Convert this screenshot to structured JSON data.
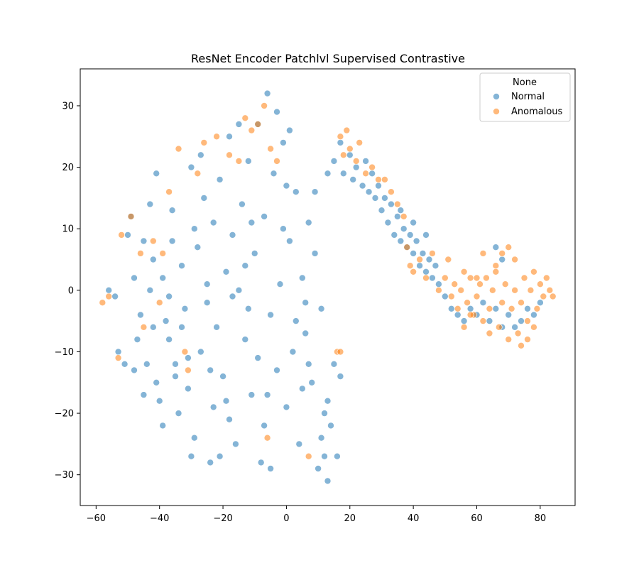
{
  "chart_data": {
    "type": "scatter",
    "title": "ResNet Encoder Patchlvl Supervised Contrastive",
    "xlabel": "",
    "ylabel": "",
    "xlim": [
      -65,
      91
    ],
    "ylim": [
      -35,
      36
    ],
    "xticks": [
      -60,
      -40,
      -20,
      0,
      20,
      40,
      60,
      80
    ],
    "yticks": [
      -30,
      -20,
      -10,
      0,
      10,
      20,
      30
    ],
    "grid": false,
    "legend": {
      "title": "None",
      "placement": "top-right",
      "entries": [
        "Normal",
        "Anomalous"
      ]
    },
    "series": [
      {
        "name": "Normal",
        "color": "#1f77b4",
        "points": [
          [
            -56,
            0
          ],
          [
            -54,
            -1
          ],
          [
            -53,
            -10
          ],
          [
            -51,
            -12
          ],
          [
            -50,
            9
          ],
          [
            -49,
            12
          ],
          [
            -48,
            2
          ],
          [
            -47,
            -8
          ],
          [
            -46,
            -4
          ],
          [
            -45,
            8
          ],
          [
            -44,
            -12
          ],
          [
            -43,
            0
          ],
          [
            -42,
            5
          ],
          [
            -41,
            -15
          ],
          [
            -40,
            -18
          ],
          [
            -39,
            2
          ],
          [
            -38,
            -5
          ],
          [
            -37,
            -8
          ],
          [
            -36,
            8
          ],
          [
            -35,
            -12
          ],
          [
            -34,
            -20
          ],
          [
            -33,
            4
          ],
          [
            -32,
            -3
          ],
          [
            -31,
            -16
          ],
          [
            -30,
            20
          ],
          [
            -29,
            -24
          ],
          [
            -28,
            7
          ],
          [
            -27,
            -10
          ],
          [
            -26,
            15
          ],
          [
            -25,
            -2
          ],
          [
            -24,
            -28
          ],
          [
            -23,
            11
          ],
          [
            -22,
            -6
          ],
          [
            -21,
            18
          ],
          [
            -20,
            -14
          ],
          [
            -19,
            3
          ],
          [
            -18,
            -21
          ],
          [
            -17,
            9
          ],
          [
            -16,
            -25
          ],
          [
            -15,
            0
          ],
          [
            -14,
            14
          ],
          [
            -13,
            -8
          ],
          [
            -12,
            21
          ],
          [
            -11,
            -17
          ],
          [
            -10,
            6
          ],
          [
            -9,
            27
          ],
          [
            -8,
            -28
          ],
          [
            -7,
            12
          ],
          [
            -6,
            32
          ],
          [
            -5,
            -4
          ],
          [
            -4,
            19
          ],
          [
            -3,
            -13
          ],
          [
            -2,
            1
          ],
          [
            -1,
            24
          ],
          [
            0,
            -19
          ],
          [
            1,
            8
          ],
          [
            2,
            -10
          ],
          [
            3,
            16
          ],
          [
            4,
            -25
          ],
          [
            5,
            2
          ],
          [
            6,
            -7
          ],
          [
            7,
            11
          ],
          [
            8,
            -15
          ],
          [
            9,
            6
          ],
          [
            10,
            -29
          ],
          [
            11,
            -3
          ],
          [
            12,
            -20
          ],
          [
            13,
            -31
          ],
          [
            14,
            -22
          ],
          [
            15,
            -12
          ],
          [
            16,
            -27
          ],
          [
            17,
            -14
          ],
          [
            -45,
            -17
          ],
          [
            -39,
            -22
          ],
          [
            -33,
            -6
          ],
          [
            -27,
            22
          ],
          [
            -21,
            -27
          ],
          [
            -15,
            27
          ],
          [
            -9,
            -11
          ],
          [
            -3,
            29
          ],
          [
            3,
            -5
          ],
          [
            9,
            16
          ],
          [
            -43,
            14
          ],
          [
            -37,
            -1
          ],
          [
            -31,
            -11
          ],
          [
            -25,
            1
          ],
          [
            -19,
            -18
          ],
          [
            -13,
            4
          ],
          [
            -7,
            -22
          ],
          [
            -1,
            10
          ],
          [
            5,
            -16
          ],
          [
            11,
            -24
          ],
          [
            -48,
            -13
          ],
          [
            -42,
            -6
          ],
          [
            -36,
            13
          ],
          [
            -30,
            -27
          ],
          [
            -24,
            -13
          ],
          [
            -18,
            25
          ],
          [
            -12,
            -3
          ],
          [
            -6,
            -17
          ],
          [
            0,
            17
          ],
          [
            6,
            -2
          ],
          [
            12,
            -27
          ],
          [
            -41,
            19
          ],
          [
            -35,
            -14
          ],
          [
            -29,
            10
          ],
          [
            -23,
            -19
          ],
          [
            -17,
            -1
          ],
          [
            -11,
            11
          ],
          [
            -5,
            -29
          ],
          [
            1,
            26
          ],
          [
            7,
            -12
          ],
          [
            13,
            -18
          ],
          [
            13,
            19
          ],
          [
            15,
            21
          ],
          [
            17,
            24
          ],
          [
            18,
            19
          ],
          [
            20,
            22
          ],
          [
            21,
            18
          ],
          [
            22,
            20
          ],
          [
            24,
            17
          ],
          [
            25,
            21
          ],
          [
            26,
            16
          ],
          [
            27,
            19
          ],
          [
            28,
            15
          ],
          [
            29,
            17
          ],
          [
            30,
            13
          ],
          [
            31,
            15
          ],
          [
            32,
            11
          ],
          [
            33,
            14
          ],
          [
            34,
            9
          ],
          [
            35,
            12
          ],
          [
            36,
            8
          ],
          [
            37,
            10
          ],
          [
            38,
            7
          ],
          [
            39,
            9
          ],
          [
            40,
            6
          ],
          [
            41,
            8
          ],
          [
            42,
            4
          ],
          [
            43,
            6
          ],
          [
            44,
            3
          ],
          [
            45,
            5
          ],
          [
            46,
            2
          ],
          [
            47,
            4
          ],
          [
            48,
            1
          ],
          [
            50,
            -1
          ],
          [
            52,
            -3
          ],
          [
            54,
            -4
          ],
          [
            56,
            -5
          ],
          [
            58,
            -3
          ],
          [
            60,
            -4
          ],
          [
            62,
            -2
          ],
          [
            64,
            -5
          ],
          [
            66,
            -3
          ],
          [
            68,
            -6
          ],
          [
            70,
            -4
          ],
          [
            72,
            -6
          ],
          [
            74,
            -5
          ],
          [
            76,
            -3
          ],
          [
            78,
            -4
          ],
          [
            80,
            -2
          ],
          [
            66,
            7
          ],
          [
            68,
            5
          ],
          [
            36,
            13
          ],
          [
            40,
            11
          ],
          [
            44,
            9
          ]
        ]
      },
      {
        "name": "Anomalous",
        "color": "#ff7f0e",
        "points": [
          [
            -58,
            -2
          ],
          [
            -56,
            -1
          ],
          [
            -53,
            -11
          ],
          [
            -52,
            9
          ],
          [
            -49,
            12
          ],
          [
            -46,
            6
          ],
          [
            -45,
            -6
          ],
          [
            -42,
            8
          ],
          [
            -40,
            -2
          ],
          [
            -39,
            6
          ],
          [
            -37,
            16
          ],
          [
            -34,
            23
          ],
          [
            -32,
            -10
          ],
          [
            -31,
            -13
          ],
          [
            -28,
            19
          ],
          [
            -26,
            24
          ],
          [
            -22,
            25
          ],
          [
            -18,
            22
          ],
          [
            -15,
            21
          ],
          [
            -13,
            28
          ],
          [
            -11,
            26
          ],
          [
            -9,
            27
          ],
          [
            -7,
            30
          ],
          [
            -6,
            -24
          ],
          [
            -5,
            23
          ],
          [
            -3,
            21
          ],
          [
            7,
            -27
          ],
          [
            16,
            -10
          ],
          [
            17,
            -10
          ],
          [
            17,
            25
          ],
          [
            18,
            22
          ],
          [
            19,
            26
          ],
          [
            20,
            23
          ],
          [
            22,
            21
          ],
          [
            23,
            24
          ],
          [
            25,
            19
          ],
          [
            27,
            20
          ],
          [
            29,
            18
          ],
          [
            31,
            18
          ],
          [
            33,
            16
          ],
          [
            35,
            14
          ],
          [
            37,
            12
          ],
          [
            38,
            7
          ],
          [
            39,
            4
          ],
          [
            40,
            3
          ],
          [
            42,
            5
          ],
          [
            44,
            2
          ],
          [
            46,
            6
          ],
          [
            48,
            0
          ],
          [
            50,
            2
          ],
          [
            51,
            5
          ],
          [
            52,
            -1
          ],
          [
            53,
            1
          ],
          [
            54,
            -3
          ],
          [
            55,
            0
          ],
          [
            56,
            3
          ],
          [
            57,
            -2
          ],
          [
            58,
            2
          ],
          [
            59,
            -4
          ],
          [
            60,
            -1
          ],
          [
            61,
            1
          ],
          [
            62,
            -5
          ],
          [
            63,
            2
          ],
          [
            64,
            -3
          ],
          [
            65,
            0
          ],
          [
            66,
            3
          ],
          [
            67,
            -6
          ],
          [
            68,
            -2
          ],
          [
            69,
            1
          ],
          [
            70,
            -8
          ],
          [
            71,
            -3
          ],
          [
            72,
            0
          ],
          [
            73,
            -7
          ],
          [
            74,
            -2
          ],
          [
            75,
            2
          ],
          [
            76,
            -5
          ],
          [
            77,
            0
          ],
          [
            78,
            3
          ],
          [
            79,
            -3
          ],
          [
            80,
            1
          ],
          [
            81,
            -1
          ],
          [
            82,
            2
          ],
          [
            83,
            0
          ],
          [
            84,
            -1
          ],
          [
            70,
            7
          ],
          [
            72,
            5
          ],
          [
            68,
            6
          ],
          [
            66,
            4
          ],
          [
            62,
            6
          ],
          [
            60,
            2
          ],
          [
            64,
            -7
          ],
          [
            58,
            -4
          ],
          [
            56,
            -6
          ],
          [
            74,
            -9
          ],
          [
            76,
            -8
          ],
          [
            78,
            -6
          ]
        ]
      }
    ]
  }
}
